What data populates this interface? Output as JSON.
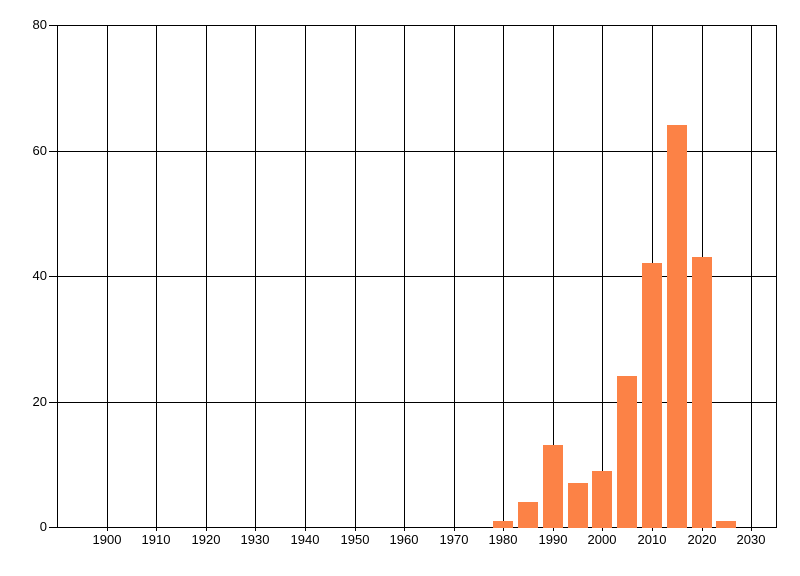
{
  "chart_data": {
    "type": "bar",
    "title": "",
    "xlabel": "",
    "ylabel": "",
    "categories": [
      1980,
      1985,
      1990,
      1995,
      2000,
      2005,
      2010,
      2015,
      2020,
      2025
    ],
    "values": [
      1,
      4,
      13,
      7,
      9,
      24,
      42,
      64,
      43,
      1
    ],
    "xlim": [
      1890,
      2035
    ],
    "ylim": [
      0,
      80
    ],
    "x_ticks": [
      {
        "value": 1900,
        "label": "1900"
      },
      {
        "value": 1910,
        "label": "1910"
      },
      {
        "value": 1920,
        "label": "1920"
      },
      {
        "value": 1930,
        "label": "1930"
      },
      {
        "value": 1940,
        "label": "1940"
      },
      {
        "value": 1950,
        "label": "1950"
      },
      {
        "value": 1960,
        "label": "1960"
      },
      {
        "value": 1970,
        "label": "1970"
      },
      {
        "value": 1980,
        "label": "1980"
      },
      {
        "value": 1990,
        "label": "1990"
      },
      {
        "value": 2000,
        "label": "2000"
      },
      {
        "value": 2010,
        "label": "2010"
      },
      {
        "value": 2020,
        "label": "2020"
      },
      {
        "value": 2030,
        "label": "2030"
      }
    ],
    "y_ticks": [
      {
        "value": 0,
        "label": "0"
      },
      {
        "value": 20,
        "label": "20"
      },
      {
        "value": 40,
        "label": "40"
      },
      {
        "value": 60,
        "label": "60"
      },
      {
        "value": 80,
        "label": "80"
      }
    ],
    "grid": true,
    "legend_position": "none",
    "colors": {
      "bar": "#FC8246",
      "grid": "#000000",
      "axis": "#000000",
      "text": "#000000",
      "background": "#FFFFFF"
    }
  }
}
